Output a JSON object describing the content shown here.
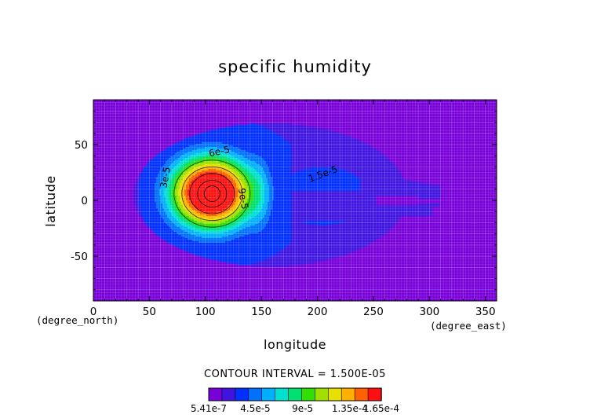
{
  "chart_data": {
    "type": "heatmap",
    "subtype": "filled-contour",
    "title": "specific humidity",
    "xlabel": "longitude",
    "ylabel": "latitude",
    "x_unit": "(degree_east)",
    "y_unit": "(degree_north)",
    "xlim": [
      0,
      360
    ],
    "ylim": [
      -90,
      90
    ],
    "x_ticks": [
      "0",
      "50",
      "100",
      "150",
      "200",
      "250",
      "300",
      "350"
    ],
    "y_ticks": [
      "50",
      "0",
      "-50"
    ],
    "x_tick_values": [
      0,
      50,
      100,
      150,
      200,
      250,
      300,
      350
    ],
    "y_tick_values": [
      50,
      0,
      -50
    ],
    "contour_interval_text": "CONTOUR INTERVAL = 1.500E-05",
    "contour_interval": 1.5e-05,
    "min_value": 5.41e-07,
    "max_value": 0.000165,
    "max_location": {
      "lon": 105,
      "lat": 7
    },
    "contour_labels": [
      {
        "text": "6e-5",
        "lon": 113,
        "lat": 41
      },
      {
        "text": "3e-5",
        "lon": 67,
        "lat": 20
      },
      {
        "text": "9e-5",
        "lon": 131,
        "lat": 1
      },
      {
        "text": "1.5e-5",
        "lon": 206,
        "lat": 21
      }
    ],
    "grid": true,
    "colorbar": {
      "position": "bottom",
      "labels": [
        "5.41e-7",
        "4.5e-5",
        "9e-5",
        "1.35e-4",
        "1.65e-4"
      ],
      "label_values": [
        5.41e-07,
        4.5e-05,
        9e-05,
        0.000135,
        0.000165
      ],
      "colors": [
        "#7800d8",
        "#4014e0",
        "#0030ff",
        "#0070ff",
        "#00b0ff",
        "#00e0d0",
        "#00e070",
        "#30e000",
        "#a0e000",
        "#e8e000",
        "#ffb000",
        "#ff6000",
        "#ff1010"
      ]
    }
  }
}
